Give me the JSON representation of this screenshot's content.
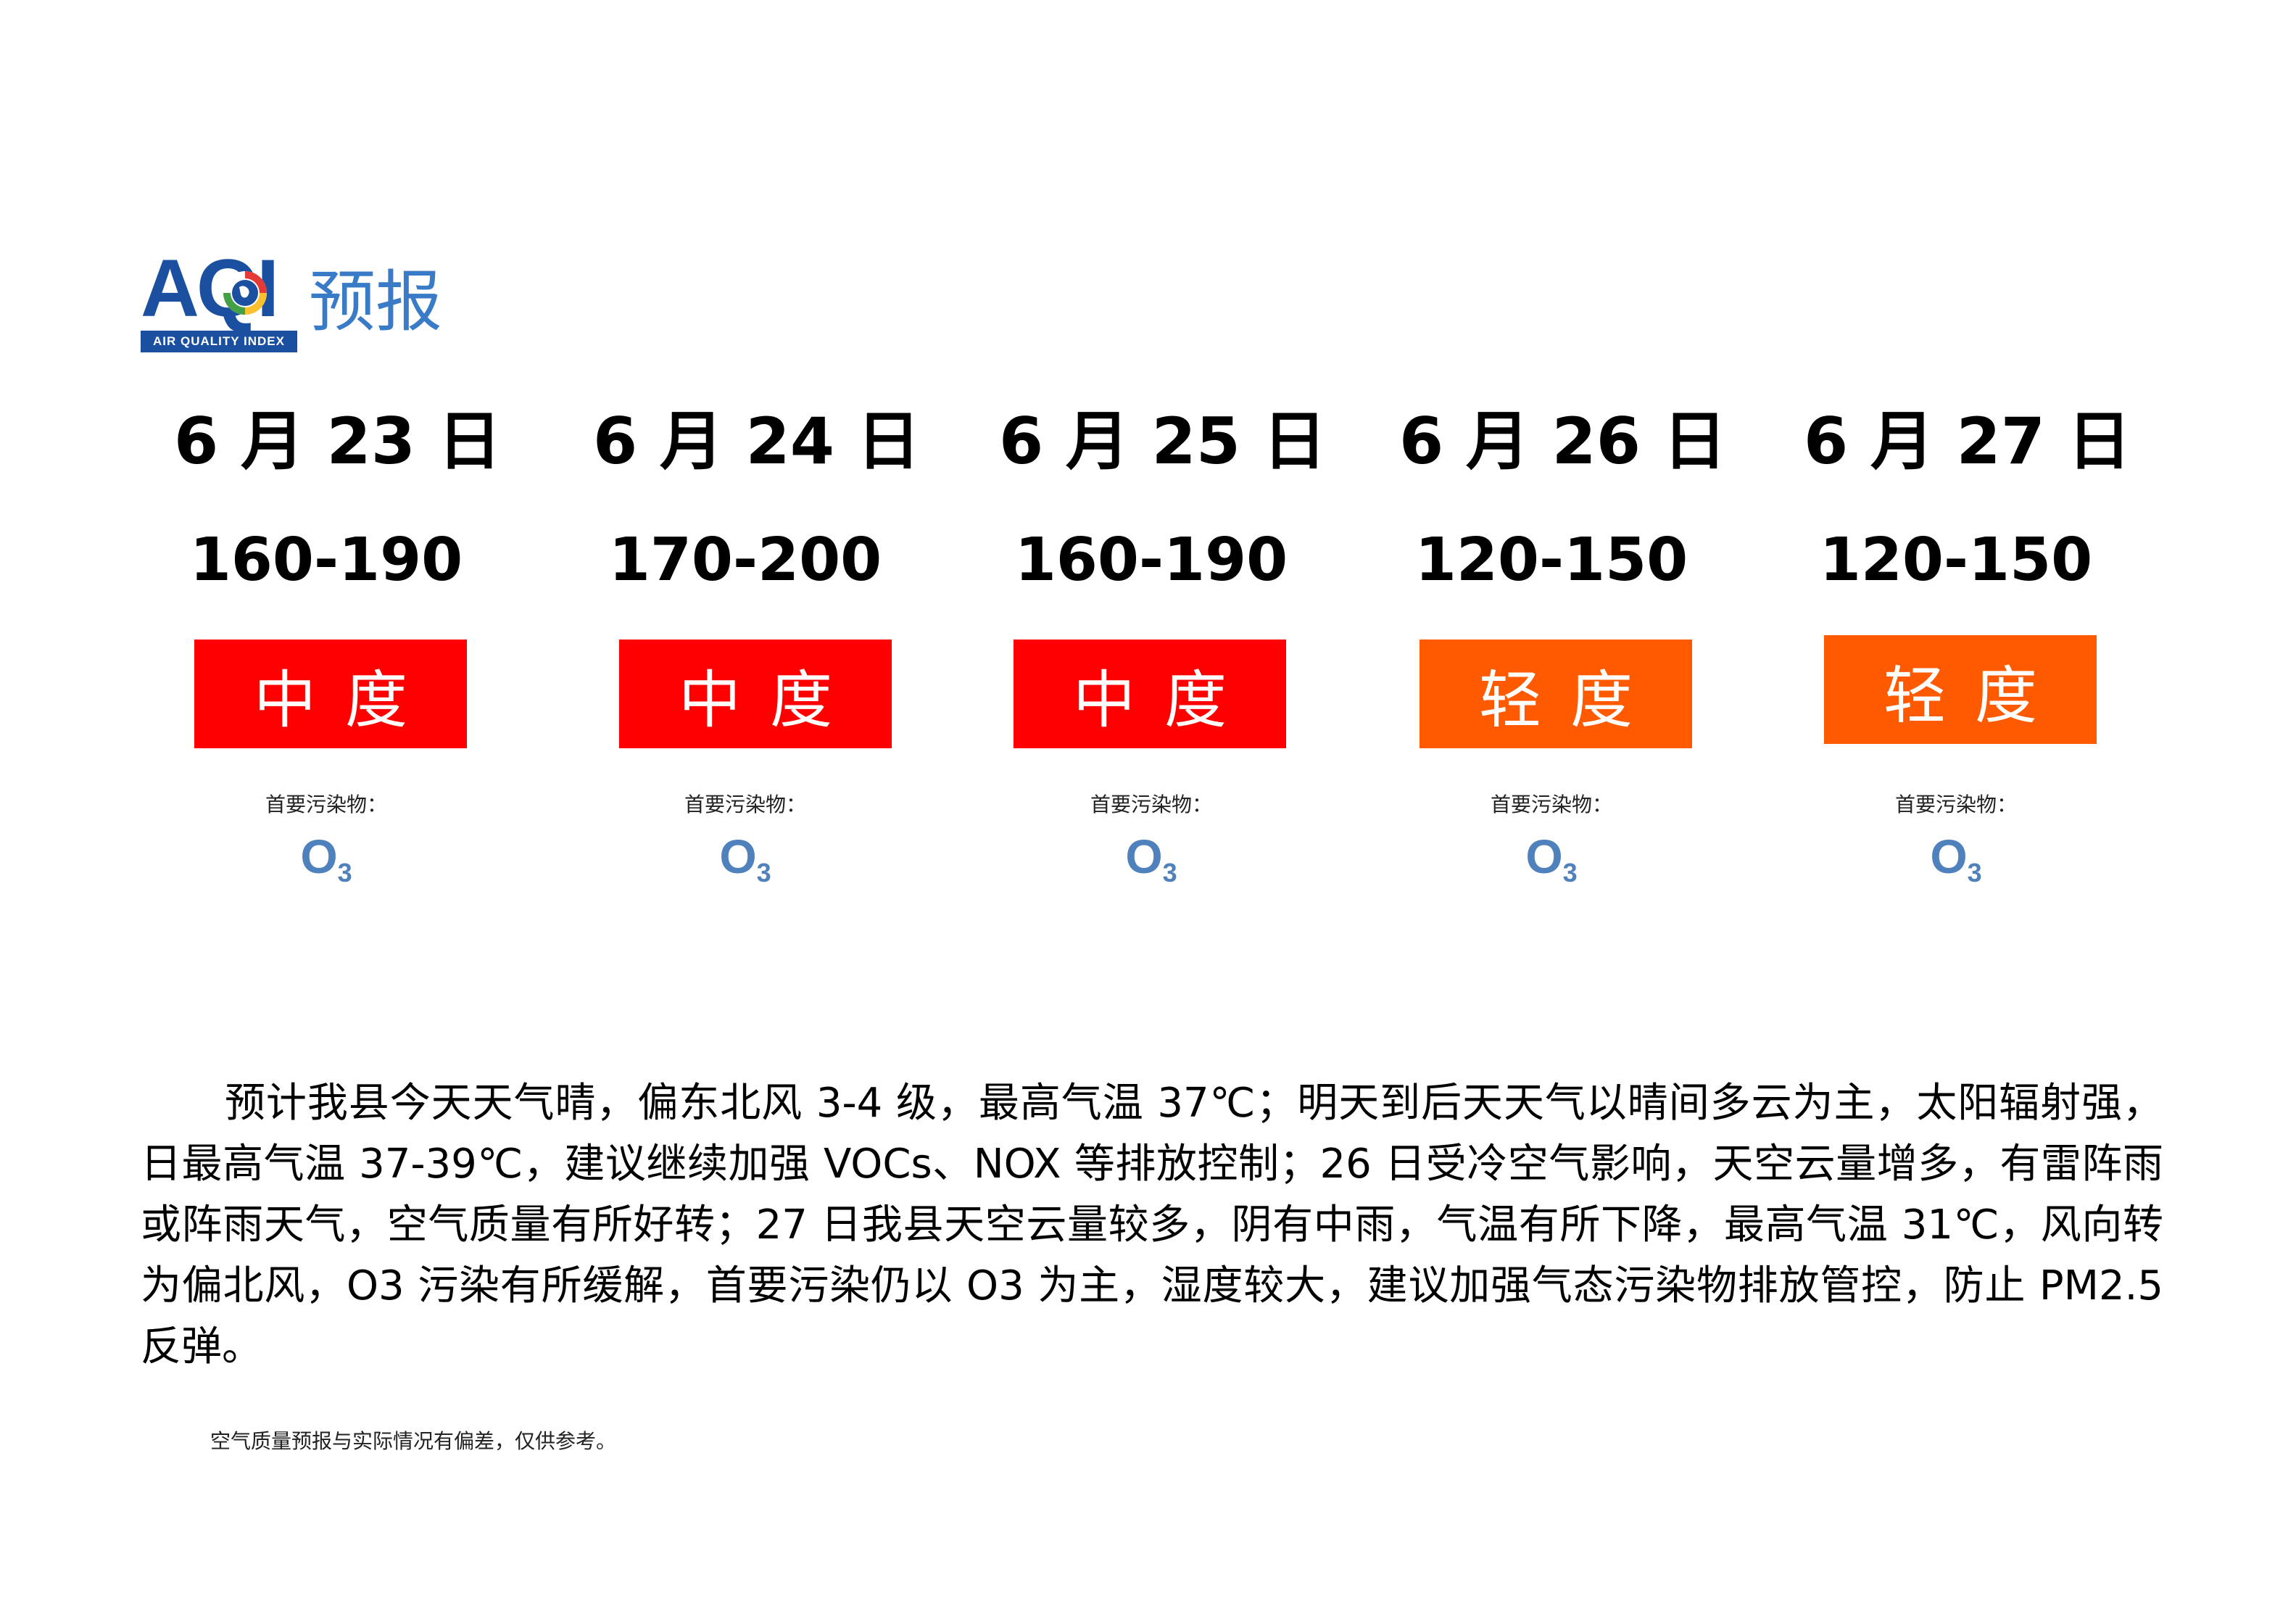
{
  "logo": {
    "letters": "AQI",
    "tagline": "AIR QUALITY INDEX",
    "title": "预报",
    "globe_colors": [
      "#1b4fa0",
      "#e53935",
      "#fbc02d",
      "#43a047"
    ]
  },
  "days": [
    {
      "date": "6 月 23 日",
      "range": "160-190",
      "level": "中度",
      "level_color": "#ff0000",
      "pollutant_label": "首要污染物：",
      "pollutant_main": "O",
      "pollutant_sub": "3"
    },
    {
      "date": "6 月 24 日",
      "range": "170-200",
      "level": "中度",
      "level_color": "#ff0000",
      "pollutant_label": "首要污染物：",
      "pollutant_main": "O",
      "pollutant_sub": "3"
    },
    {
      "date": "6 月 25 日",
      "range": "160-190",
      "level": "中度",
      "level_color": "#ff0000",
      "pollutant_label": "首要污染物：",
      "pollutant_main": "O",
      "pollutant_sub": "3"
    },
    {
      "date": "6 月 26 日",
      "range": "120-150",
      "level": "轻度",
      "level_color": "#ff5a00",
      "pollutant_label": "首要污染物：",
      "pollutant_main": "O",
      "pollutant_sub": "3"
    },
    {
      "date": "6 月 27 日",
      "range": "120-150",
      "level": "轻度",
      "level_color": "#ff5a00",
      "pollutant_label": "首要污染物：",
      "pollutant_main": "O",
      "pollutant_sub": "3"
    }
  ],
  "description": "预计我县今天天气晴，偏东北风 3-4 级，最高气温 37℃；明天到后天天气以晴间多云为主，太阳辐射强，日最高气温 37-39℃，建议继续加强 VOCs、NOX 等排放控制；26 日受冷空气影响，天空云量增多，有雷阵雨或阵雨天气，空气质量有所好转；27 日我县天空云量较多，阴有中雨，气温有所下降，最高气温 31℃，风向转为偏北风，O3 污染有所缓解，首要污染仍以 O3 为主，湿度较大，建议加强气态污染物排放管控，防止 PM2.5 反弹。",
  "footnote": "空气质量预报与实际情况有偏差，仅供参考。"
}
